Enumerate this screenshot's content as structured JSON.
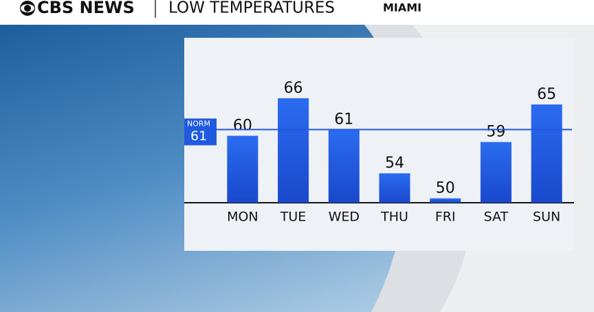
{
  "header": {
    "brand": "CBS NEWS"
  },
  "chart_data": {
    "type": "bar",
    "title": "LOW TEMPERATURES",
    "subtitle": "MIAMI",
    "categories": [
      "MON",
      "TUE",
      "WED",
      "THU",
      "FRI",
      "SAT",
      "SUN"
    ],
    "values": [
      60,
      66,
      61,
      54,
      50,
      59,
      65
    ],
    "color": "#1f5ae0",
    "ylim": [
      49.3,
      70
    ],
    "reference_line": {
      "label": "NORM",
      "value": 61
    }
  }
}
